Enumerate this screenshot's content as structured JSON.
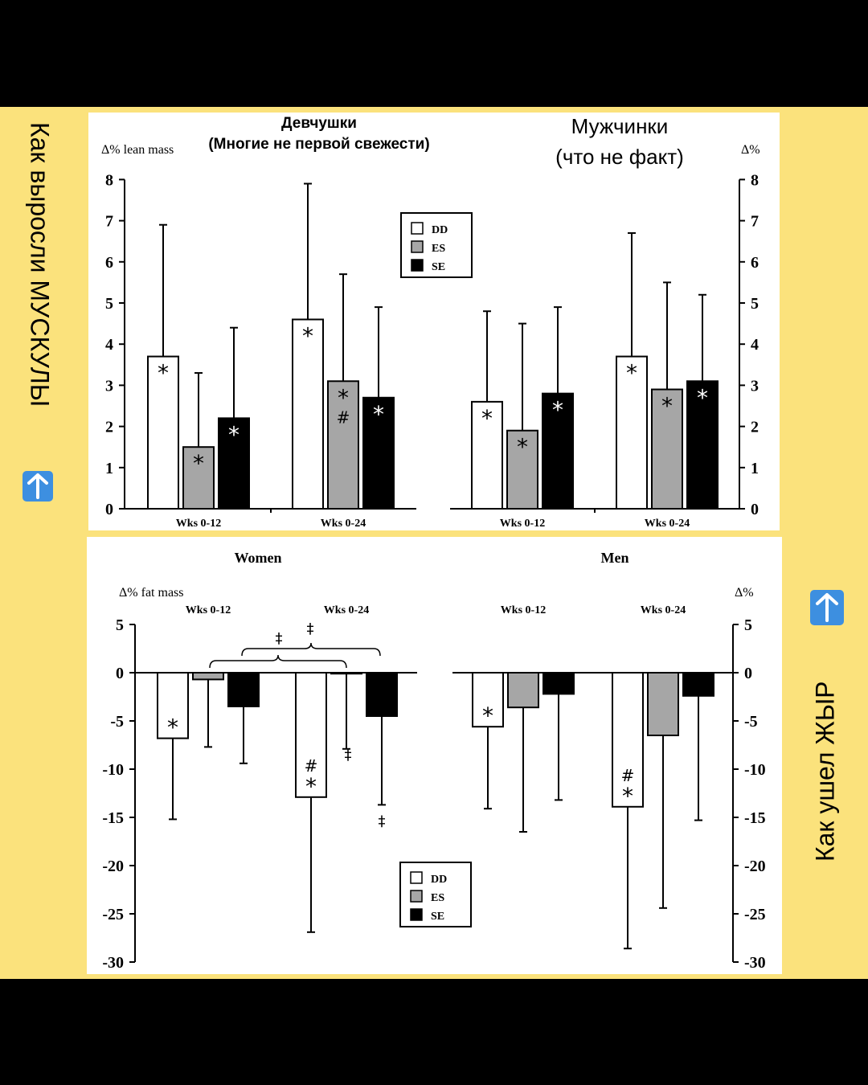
{
  "side_captions": {
    "left": "Как выросли МУСКУЛЫ",
    "left_icon": "up-arrow-icon",
    "right": "Как ушел ЖЫР",
    "right_icon": "up-arrow-icon",
    "icon_color": "#3d8fe0"
  },
  "colors": {
    "background": "#000000",
    "frame": "#fbe27c",
    "panel": "#ffffff",
    "DD": "#ffffff",
    "ES": "#a6a6a6",
    "SE": "#000000"
  },
  "legend": [
    "DD",
    "ES",
    "SE"
  ],
  "annotations": {
    "women_title_line1": "Девчушки",
    "women_title_line2": "(Многие не первой свежести)",
    "men_title_line1": "Мужчинки",
    "men_title_line2": "(что не факт)"
  },
  "chart_data": [
    {
      "type": "bar",
      "ylabel_left": "Δ% lean mass",
      "ylabel_right": "Δ%",
      "ylim": [
        0,
        8
      ],
      "yticks": [
        0,
        1,
        2,
        3,
        4,
        5,
        6,
        7,
        8
      ],
      "groups": [
        "Wks 0-12",
        "Wks 0-24"
      ],
      "panels": [
        {
          "name": "women",
          "series": [
            {
              "name": "DD",
              "values": [
                3.7,
                4.6
              ],
              "err_up": [
                6.9,
                7.9
              ],
              "marks": [
                [
                  "*"
                ],
                [
                  "*"
                ]
              ]
            },
            {
              "name": "ES",
              "values": [
                1.5,
                3.1
              ],
              "err_up": [
                3.3,
                5.7
              ],
              "marks": [
                [
                  "*"
                ],
                [
                  "*",
                  "#"
                ]
              ]
            },
            {
              "name": "SE",
              "values": [
                2.2,
                2.7
              ],
              "err_up": [
                4.4,
                4.9
              ],
              "marks": [
                [
                  "*"
                ],
                [
                  "*"
                ]
              ]
            }
          ]
        },
        {
          "name": "men",
          "series": [
            {
              "name": "DD",
              "values": [
                2.6,
                3.7
              ],
              "err_up": [
                4.8,
                6.7
              ],
              "marks": [
                [
                  "*"
                ],
                [
                  "*"
                ]
              ]
            },
            {
              "name": "ES",
              "values": [
                1.9,
                2.9
              ],
              "err_up": [
                4.5,
                5.5
              ],
              "marks": [
                [
                  "*"
                ],
                [
                  "*"
                ]
              ]
            },
            {
              "name": "SE",
              "values": [
                2.8,
                3.1
              ],
              "err_up": [
                4.9,
                5.2
              ],
              "marks": [
                [
                  "*"
                ],
                [
                  "*"
                ]
              ]
            }
          ]
        }
      ]
    },
    {
      "type": "bar",
      "titles": [
        "Women",
        "Men"
      ],
      "ylabel_left": "Δ% fat mass",
      "ylabel_right": "Δ%",
      "ylim": [
        -30,
        5
      ],
      "yticks": [
        5,
        0,
        -5,
        -10,
        -15,
        -20,
        -25,
        -30
      ],
      "groups": [
        "Wks 0-12",
        "Wks 0-24"
      ],
      "panels": [
        {
          "name": "women",
          "series": [
            {
              "name": "DD",
              "values": [
                -6.8,
                -12.9
              ],
              "err_down": [
                -15.2,
                -26.9
              ],
              "marks": [
                [
                  "*"
                ],
                [
                  "#",
                  "*"
                ]
              ]
            },
            {
              "name": "ES",
              "values": [
                -0.7,
                -0.1
              ],
              "err_down": [
                -7.7,
                -7.9
              ],
              "marks": [
                [],
                [
                  "‡"
                ]
              ]
            },
            {
              "name": "SE",
              "values": [
                -3.5,
                -4.5
              ],
              "err_down": [
                -9.4,
                -13.7
              ],
              "marks": [
                [],
                [
                  "‡"
                ]
              ]
            }
          ],
          "brackets": [
            "‡",
            "‡"
          ]
        },
        {
          "name": "men",
          "series": [
            {
              "name": "DD",
              "values": [
                -5.6,
                -13.9
              ],
              "err_down": [
                -14.1,
                -28.6
              ],
              "marks": [
                [
                  "*"
                ],
                [
                  "#",
                  "*"
                ]
              ]
            },
            {
              "name": "ES",
              "values": [
                -3.6,
                -6.5
              ],
              "err_down": [
                -16.5,
                -24.4
              ],
              "marks": [
                [],
                []
              ]
            },
            {
              "name": "SE",
              "values": [
                -2.2,
                -2.4
              ],
              "err_down": [
                -13.2,
                -15.3
              ],
              "marks": [
                [],
                []
              ]
            }
          ]
        }
      ]
    }
  ]
}
